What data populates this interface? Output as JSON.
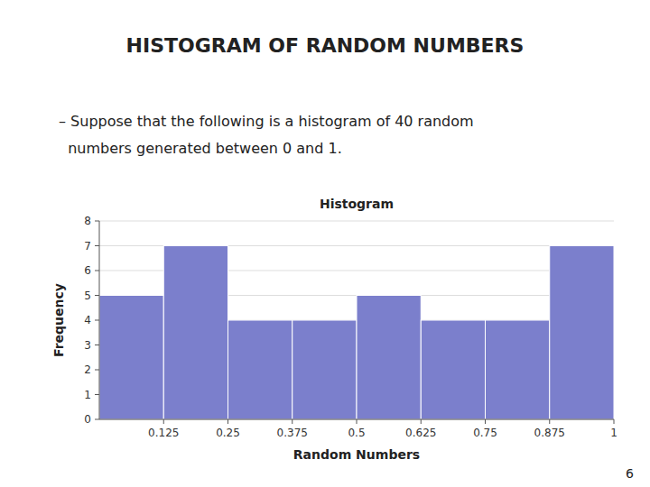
{
  "title": "HISTOGRAM OF RANDOM NUMBERS",
  "subtitle": [
    "– Suppose that the following is a histogram of 40 random",
    "  numbers generated between 0 and 1."
  ],
  "page_number": "6",
  "chart_data": {
    "type": "histogram",
    "title": "Histogram",
    "x_label": "Random Numbers",
    "y_label": "Frequency",
    "bins": [
      0.0,
      0.125,
      0.25,
      0.375,
      0.5,
      0.625,
      0.75,
      0.875,
      1.0
    ],
    "values": [
      5,
      7,
      4,
      4,
      5,
      4,
      4,
      7
    ],
    "color": "#7B7FCC",
    "xlim": [
      0,
      1
    ],
    "xticks": [
      0.125,
      0.25,
      0.375,
      0.5,
      0.625,
      0.75,
      0.875,
      1
    ],
    "ylim": [
      0,
      8
    ],
    "yticks": [
      0,
      1,
      2,
      3,
      4,
      5,
      6,
      7,
      8
    ],
    "grid": true
  }
}
